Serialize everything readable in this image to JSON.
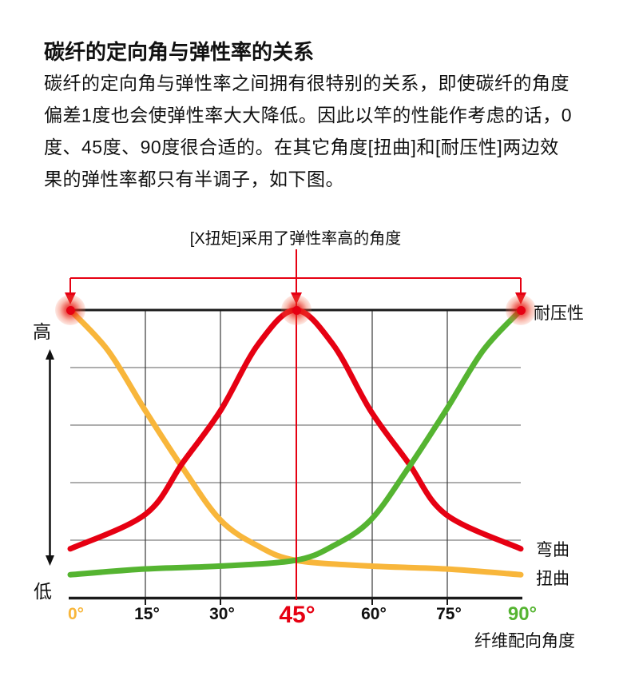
{
  "title": "碳纤的定向角与弹性率的关系",
  "intro_lines": [
    "碳纤的定向角与弹性率之间拥有很特别的关系，即使碳纤的角度",
    "偏差1度也会使弹性率大大降低。因此以竿的性能作考虑的话，0",
    "度、45度、90度很合适的。在其它角度[扭曲]和[耐压性]两边效",
    "果的弹性率都只有半调子，如下图。"
  ],
  "chart_data": {
    "type": "line",
    "annotation": "[X扭矩]采用了弹性率高的角度",
    "x_axis": {
      "title": "纤维配向角度",
      "range_degrees": [
        0,
        90
      ],
      "ticks": [
        {
          "label": "0°",
          "color": "#F8B63B"
        },
        {
          "label": "15°",
          "color": "#111111"
        },
        {
          "label": "30°",
          "color": "#111111"
        },
        {
          "label": "45°",
          "color": "#E60012"
        },
        {
          "label": "60°",
          "color": "#111111"
        },
        {
          "label": "75°",
          "color": "#111111"
        },
        {
          "label": "90°",
          "color": "#55B431"
        }
      ]
    },
    "y_axis": {
      "high_label": "高",
      "low_label": "低",
      "range_normalized": [
        0,
        1
      ],
      "grid_rows": 5,
      "grid": true
    },
    "series": [
      {
        "name": "扭曲",
        "color": "#F8B63B",
        "x_degrees": [
          0,
          7.5,
          15,
          22.5,
          30,
          37.5,
          45,
          60,
          75,
          90
        ],
        "values": [
          1.0,
          0.86,
          0.65,
          0.45,
          0.27,
          0.18,
          0.13,
          0.11,
          0.1,
          0.08
        ]
      },
      {
        "name": "弯曲",
        "color": "#E60012",
        "x_degrees": [
          0,
          15,
          22.5,
          30,
          37.5,
          45,
          52.5,
          60,
          67.5,
          75,
          90
        ],
        "values": [
          0.17,
          0.29,
          0.47,
          0.65,
          0.88,
          1.0,
          0.88,
          0.65,
          0.47,
          0.29,
          0.17
        ]
      },
      {
        "name": "耐压性",
        "color": "#55B431",
        "x_degrees": [
          0,
          15,
          30,
          45,
          52.5,
          60,
          67.5,
          75,
          82.5,
          90
        ],
        "values": [
          0.08,
          0.1,
          0.11,
          0.13,
          0.18,
          0.27,
          0.45,
          0.65,
          0.86,
          1.0
        ]
      }
    ],
    "highlight": {
      "angles_degrees": [
        0,
        45,
        90
      ],
      "dot_color": "#E60012",
      "arrow_color": "#E60012"
    }
  }
}
